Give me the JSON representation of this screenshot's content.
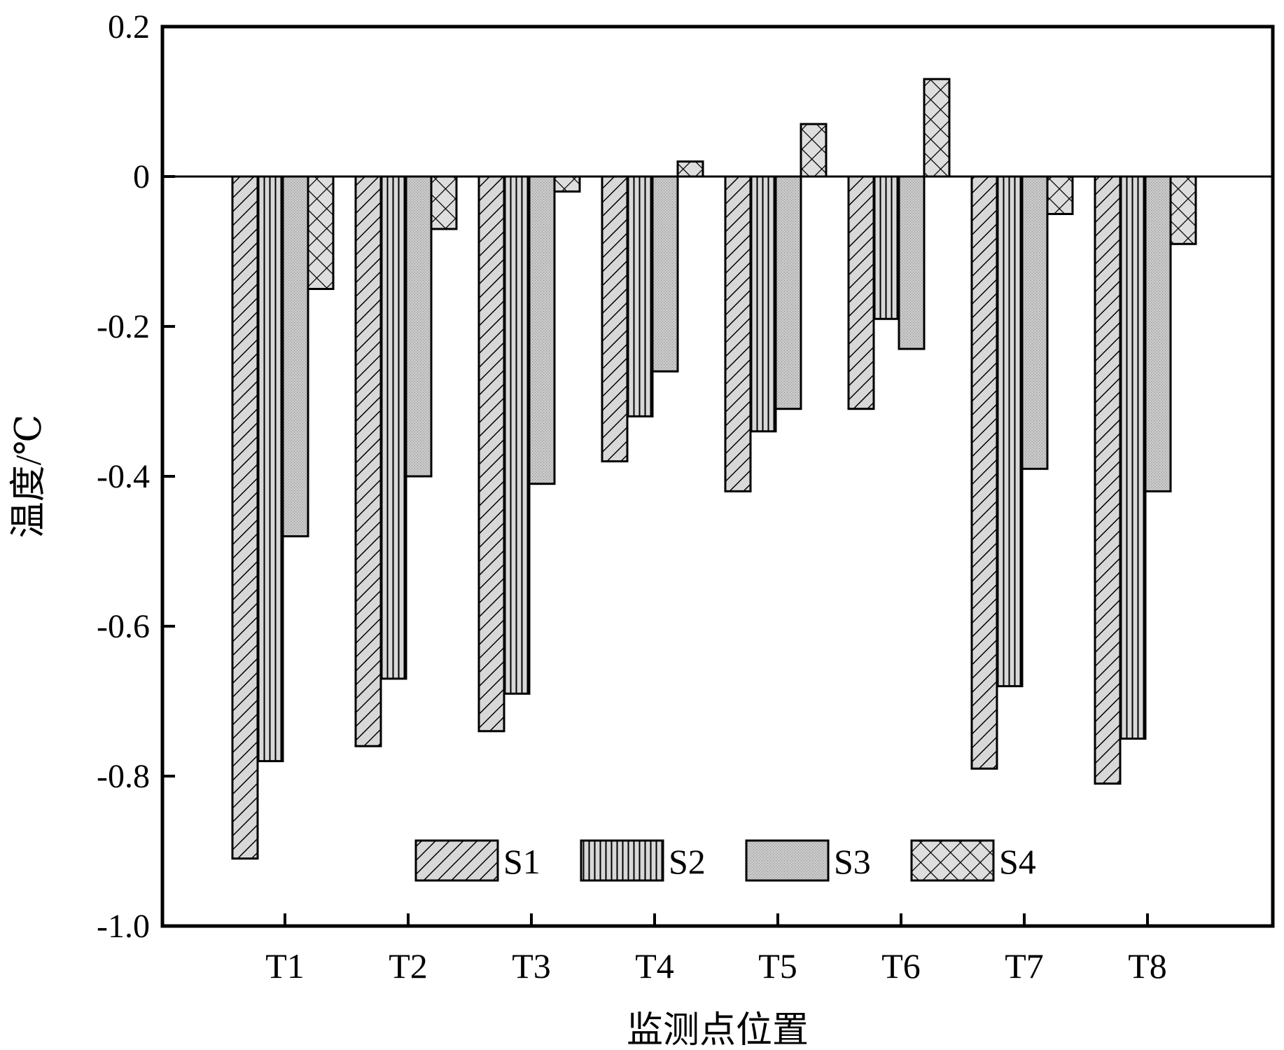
{
  "chart_data": {
    "type": "bar",
    "xlabel": "监测点位置",
    "ylabel": "温度/℃",
    "ylim": [
      -1.0,
      0.2
    ],
    "yticks": [
      "0.2",
      "0",
      "-0.2",
      "-0.4",
      "-0.6",
      "-0.8",
      "-1.0"
    ],
    "categories": [
      "T1",
      "T2",
      "T3",
      "T4",
      "T5",
      "T6",
      "T7",
      "T8"
    ],
    "series": [
      {
        "name": "S1",
        "pattern": "diagonal-hatch",
        "values": [
          -0.91,
          -0.76,
          -0.74,
          -0.38,
          -0.42,
          -0.31,
          -0.79,
          -0.81
        ]
      },
      {
        "name": "S2",
        "pattern": "vertical-hatch",
        "values": [
          -0.78,
          -0.67,
          -0.69,
          -0.32,
          -0.34,
          -0.19,
          -0.68,
          -0.75
        ]
      },
      {
        "name": "S3",
        "pattern": "dotted-gray",
        "values": [
          -0.48,
          -0.4,
          -0.41,
          -0.26,
          -0.31,
          -0.23,
          -0.39,
          -0.42
        ]
      },
      {
        "name": "S4",
        "pattern": "cross-hatch",
        "values": [
          -0.15,
          -0.07,
          -0.02,
          0.02,
          0.07,
          0.13,
          -0.05,
          -0.09
        ]
      }
    ],
    "legend_position": "bottom-center",
    "grid": false,
    "zero_line": true,
    "colors": {
      "bar_fill": "#d8d8d8",
      "stroke": "#000000",
      "background": "#ffffff"
    }
  }
}
